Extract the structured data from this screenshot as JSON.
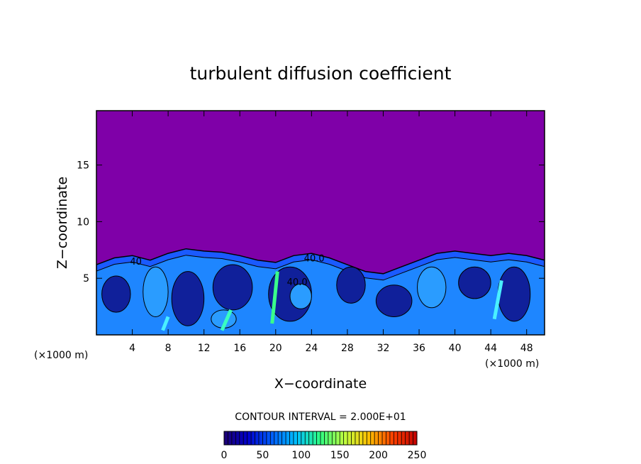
{
  "chart_data": {
    "type": "heatmap",
    "title": "turbulent diffusion coefficient",
    "xlabel": "X−coordinate",
    "ylabel": "Z−coordinate",
    "x_unit_left": "(×1000 m)",
    "x_unit_right": "(×1000 m)",
    "xlim": [
      0,
      50
    ],
    "ylim": [
      0,
      19.8
    ],
    "x_ticks": [
      4,
      8,
      12,
      16,
      20,
      24,
      28,
      32,
      36,
      40,
      44,
      48
    ],
    "y_ticks": [
      5,
      10,
      15
    ],
    "contour_interval_text": "CONTOUR INTERVAL = 2.000E+01",
    "contour_labels": [
      {
        "text": "40.0",
        "x": 24.3,
        "y": 6.5
      },
      {
        "text": "40.0",
        "x": 22.4,
        "y": 4.4
      },
      {
        "text": "40",
        "x": 4.4,
        "y": 6.2
      }
    ],
    "colorbar": {
      "min": 0,
      "max": 250,
      "tick_values": [
        0,
        50,
        100,
        150,
        200,
        250
      ],
      "tick_labels": [
        "0",
        "50",
        "100",
        "150",
        "200",
        "250"
      ]
    },
    "background_value": 0,
    "turbulent_layer_top": [
      [
        0,
        6.2
      ],
      [
        2,
        6.8
      ],
      [
        4,
        7.0
      ],
      [
        6,
        6.6
      ],
      [
        8,
        7.2
      ],
      [
        10,
        7.6
      ],
      [
        12,
        7.4
      ],
      [
        14,
        7.3
      ],
      [
        16,
        7.0
      ],
      [
        18,
        6.6
      ],
      [
        20,
        6.4
      ],
      [
        22,
        7.0
      ],
      [
        24,
        7.2
      ],
      [
        26,
        6.8
      ],
      [
        28,
        6.2
      ],
      [
        30,
        5.6
      ],
      [
        32,
        5.4
      ],
      [
        34,
        6.0
      ],
      [
        36,
        6.6
      ],
      [
        38,
        7.2
      ],
      [
        40,
        7.4
      ],
      [
        42,
        7.2
      ],
      [
        44,
        7.0
      ],
      [
        46,
        7.2
      ],
      [
        48,
        7.0
      ],
      [
        50,
        6.6
      ]
    ]
  },
  "colors": {
    "background": "#7f00a8",
    "frame": "#000000",
    "colorbar_stops": [
      "#1c0070",
      "#0000cc",
      "#0060ff",
      "#00c0ff",
      "#30ff80",
      "#c0ff40",
      "#ffc000",
      "#ff4000",
      "#c00000"
    ]
  }
}
